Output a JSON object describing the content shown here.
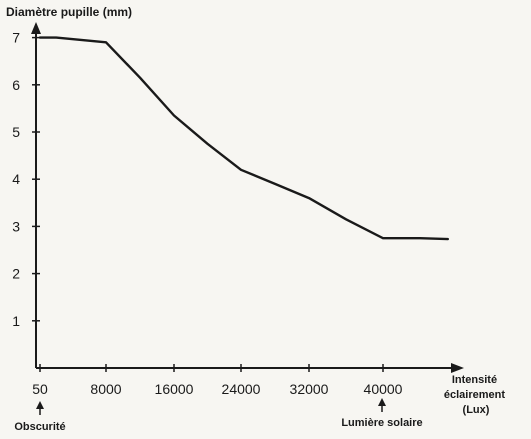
{
  "chart_data": {
    "type": "line",
    "title": "",
    "ylabel": "Diamètre pupille (mm)",
    "xlabel_lines": [
      "Intensité",
      "éclairement",
      "(Lux)"
    ],
    "x_tick_labels": [
      "50",
      "8000",
      "16000",
      "24000",
      "32000",
      "40000"
    ],
    "y_tick_labels": [
      "1",
      "2",
      "3",
      "4",
      "5",
      "6",
      "7"
    ],
    "ylim": [
      0,
      7.5
    ],
    "series": [
      {
        "x": [
          50,
          2000,
          8000,
          12000,
          16000,
          20000,
          24000,
          28000,
          32000,
          36000,
          40000,
          44000,
          47000
        ],
        "y": [
          7.0,
          7.0,
          6.9,
          6.15,
          5.35,
          4.75,
          4.2,
          3.9,
          3.6,
          3.15,
          2.75,
          2.75,
          2.73
        ]
      }
    ],
    "annotations": [
      {
        "text": "Obscurité",
        "x": 50
      },
      {
        "text": "Lumière solaire",
        "x": 40000
      }
    ],
    "line_color": "#1a1a1a"
  }
}
